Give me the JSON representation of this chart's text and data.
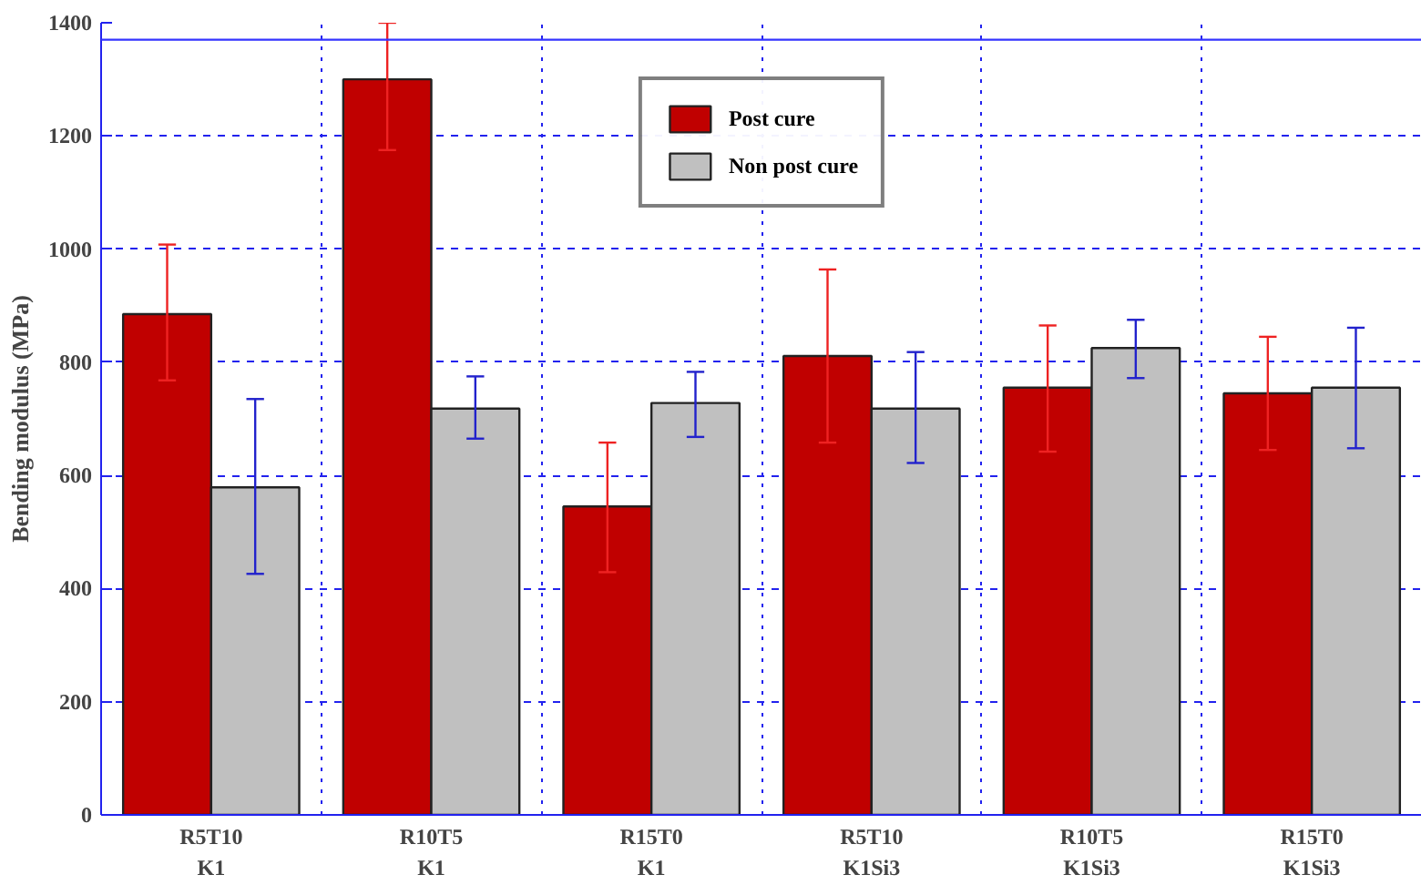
{
  "chart_data": {
    "type": "bar",
    "ylabel": "Bending modulus (MPa)",
    "categories": [
      "R5T10\nK1",
      "R10T5\nK1",
      "R15T0\nK1",
      "R5T10\nK1Si3",
      "R10T5\nK1Si3",
      "R15T0\nK1Si3"
    ],
    "series": [
      {
        "name": "Post cure",
        "color": "#c00000",
        "values": [
          885,
          1300,
          545,
          811,
          755,
          745
        ],
        "errors": [
          [
            768,
            1008
          ],
          [
            1175,
            1400
          ],
          [
            429,
            658
          ],
          [
            658,
            964
          ],
          [
            642,
            865
          ],
          [
            645,
            845
          ]
        ]
      },
      {
        "name": "Non post cure",
        "color": "#c0c0c0",
        "values": [
          579,
          718,
          728,
          718,
          825,
          755
        ],
        "errors": [
          [
            426,
            735
          ],
          [
            665,
            775
          ],
          [
            668,
            783
          ],
          [
            622,
            818
          ],
          [
            772,
            875
          ],
          [
            648,
            861
          ]
        ]
      }
    ],
    "ylim": [
      0,
      1400
    ],
    "yticks": [
      0,
      200,
      400,
      600,
      800,
      1000,
      1200,
      1400
    ],
    "grid": true,
    "legend": "top",
    "ref_lines": [
      {
        "axis": "y",
        "value": 1370,
        "color": "#3333ff",
        "line_style": "solid"
      }
    ]
  }
}
